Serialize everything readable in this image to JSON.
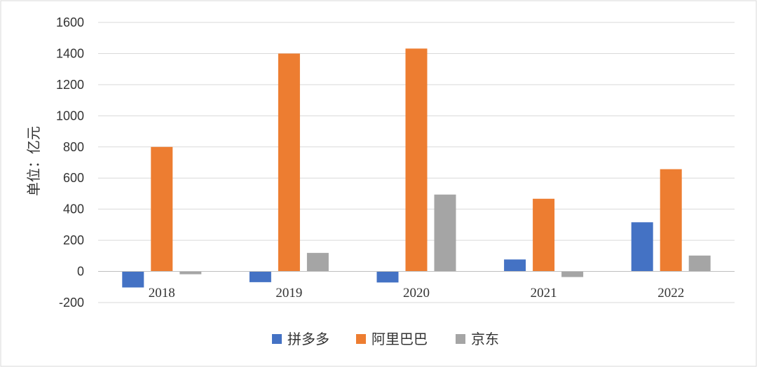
{
  "chart_data": {
    "type": "bar",
    "categories": [
      "2018",
      "2019",
      "2020",
      "2021",
      "2022"
    ],
    "series": [
      {
        "name": "拼多多",
        "values": [
          -103,
          -69,
          -71,
          77,
          316
        ],
        "color": "#4472C4"
      },
      {
        "name": "阿里巴巴",
        "values": [
          800,
          1400,
          1432,
          467,
          657
        ],
        "color": "#ED7D31"
      },
      {
        "name": "京东",
        "values": [
          -18,
          119,
          494,
          -36,
          102
        ],
        "color": "#A5A5A5"
      }
    ],
    "ylabel": "单位：亿元",
    "ylim": [
      -200,
      1600
    ],
    "yticks": [
      "1600",
      "1400",
      "1200",
      "1000",
      "800",
      "600",
      "400",
      "200",
      "0",
      "-200"
    ],
    "grid": true,
    "legend": "bottom"
  }
}
